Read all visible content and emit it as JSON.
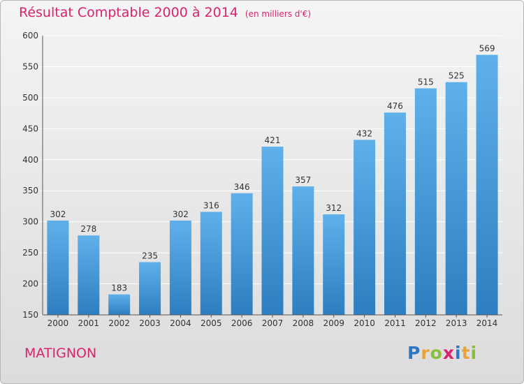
{
  "title": "Résultat Comptable 2000 à 2014",
  "subtitle": "(en milliers d'€)",
  "commune": "MATIGNON",
  "logo": {
    "letters": [
      "P",
      "r",
      "o",
      "x",
      "i",
      "t",
      "i"
    ],
    "colors": [
      "#2b77c9",
      "#e8a33a",
      "#8bbf3a",
      "#d6246e",
      "#2b77c9",
      "#e8a33a",
      "#8bbf3a"
    ]
  },
  "colors": {
    "bar_light": "#5fb0ea",
    "bar_dark": "#2d7ec0",
    "accent": "#d6246e",
    "grid": "#ffffff"
  },
  "chart_data": {
    "type": "bar",
    "title": "Résultat Comptable 2000 à 2014",
    "subtitle": "(en milliers d'€)",
    "categories": [
      "2000",
      "2001",
      "2002",
      "2003",
      "2004",
      "2005",
      "2006",
      "2007",
      "2008",
      "2009",
      "2010",
      "2011",
      "2012",
      "2013",
      "2014"
    ],
    "values": [
      302,
      278,
      183,
      235,
      302,
      316,
      346,
      421,
      357,
      312,
      432,
      476,
      515,
      525,
      569
    ],
    "ylim": [
      150,
      600
    ],
    "yticks": [
      150,
      200,
      250,
      300,
      350,
      400,
      450,
      500,
      550,
      600
    ],
    "grid": true,
    "data_labels": true
  }
}
